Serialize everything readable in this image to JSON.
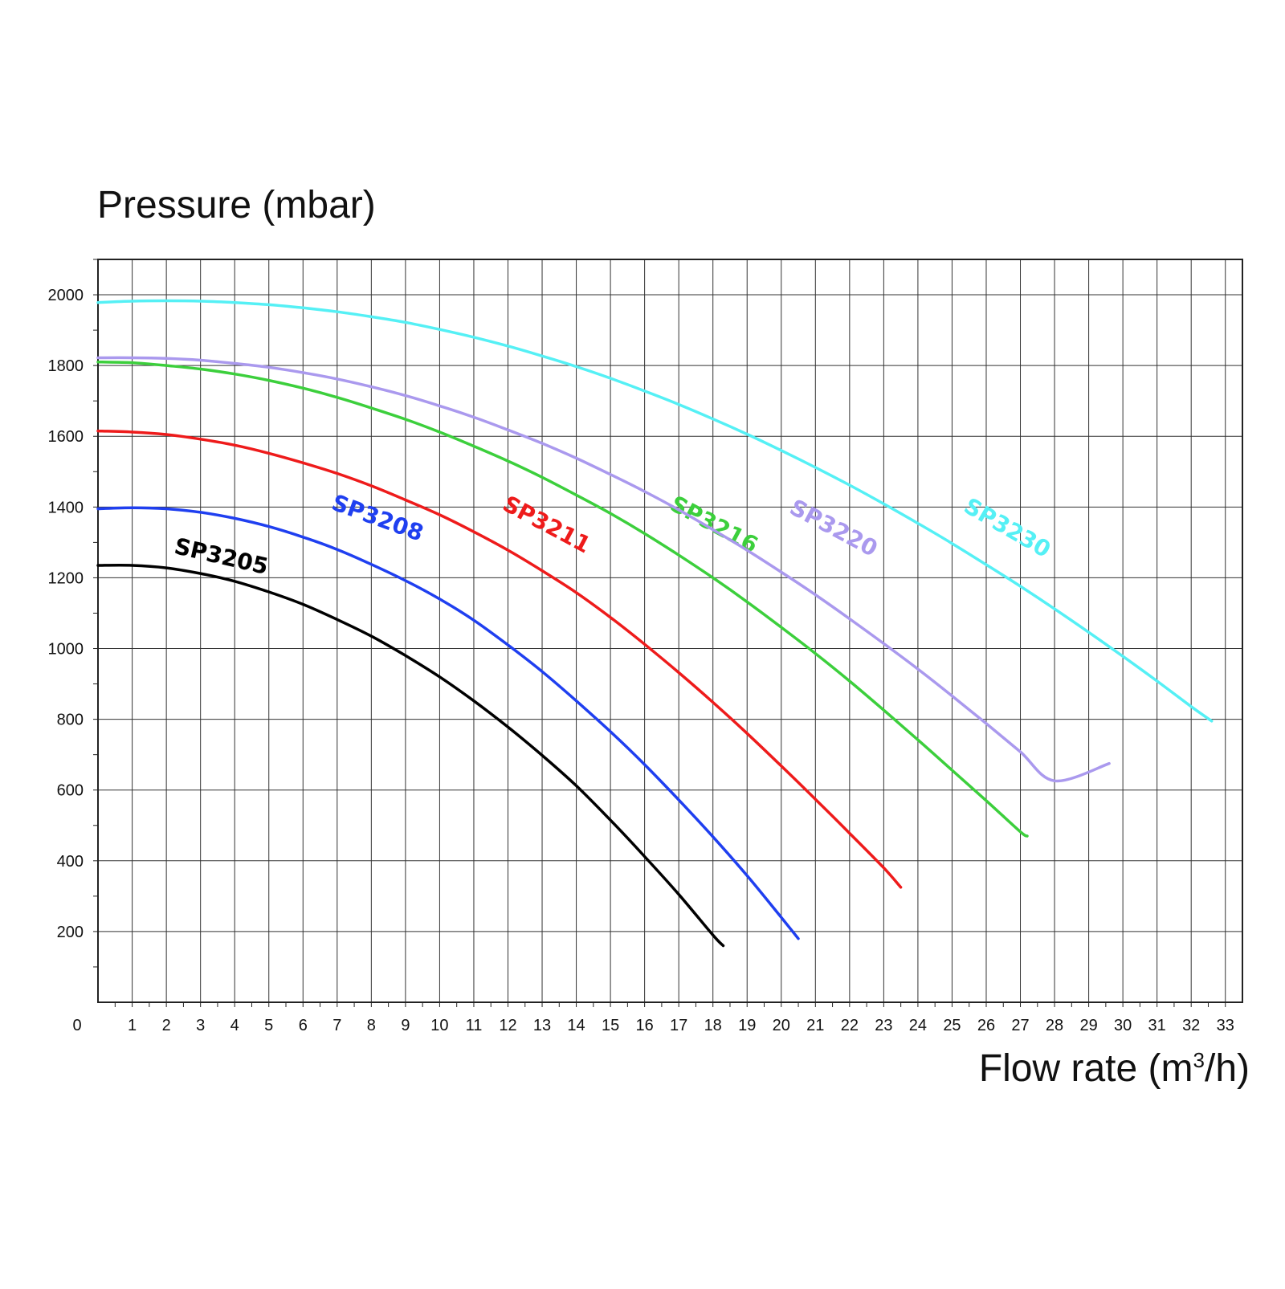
{
  "chart_data": {
    "type": "line",
    "ylabel": "Pressure (mbar)",
    "xlabel_main": "Flow rate (m",
    "xlabel_sup": "3",
    "xlabel_tail": "/h)",
    "xlim": [
      0,
      33
    ],
    "ylim": [
      0,
      2100
    ],
    "xticks": [
      0,
      1,
      2,
      3,
      4,
      5,
      6,
      7,
      8,
      9,
      10,
      11,
      12,
      13,
      14,
      15,
      16,
      17,
      18,
      19,
      20,
      21,
      22,
      23,
      24,
      25,
      26,
      27,
      28,
      29,
      30,
      31,
      32,
      33
    ],
    "yticks": [
      200,
      400,
      600,
      800,
      1000,
      1200,
      1400,
      1600,
      1800,
      2000
    ],
    "grid": true,
    "series": [
      {
        "name": "SP3205",
        "color": "#000000",
        "label_at": [
          2.2,
          1270
        ],
        "label_angle": 13,
        "points": [
          [
            0,
            1235
          ],
          [
            1,
            1235
          ],
          [
            2,
            1228
          ],
          [
            3,
            1212
          ],
          [
            4,
            1190
          ],
          [
            5,
            1160
          ],
          [
            6,
            1125
          ],
          [
            7,
            1082
          ],
          [
            8,
            1035
          ],
          [
            9,
            980
          ],
          [
            10,
            920
          ],
          [
            11,
            852
          ],
          [
            12,
            778
          ],
          [
            13,
            698
          ],
          [
            14,
            612
          ],
          [
            15,
            515
          ],
          [
            16,
            412
          ],
          [
            17,
            305
          ],
          [
            18,
            190
          ],
          [
            18.3,
            160
          ]
        ]
      },
      {
        "name": "SP3208",
        "color": "#1f3ff0",
        "label_at": [
          6.8,
          1395
        ],
        "label_angle": 20,
        "points": [
          [
            0,
            1395
          ],
          [
            1,
            1398
          ],
          [
            2,
            1395
          ],
          [
            3,
            1385
          ],
          [
            4,
            1368
          ],
          [
            5,
            1345
          ],
          [
            6,
            1315
          ],
          [
            7,
            1280
          ],
          [
            8,
            1238
          ],
          [
            9,
            1192
          ],
          [
            10,
            1140
          ],
          [
            11,
            1080
          ],
          [
            12,
            1010
          ],
          [
            13,
            935
          ],
          [
            14,
            852
          ],
          [
            15,
            765
          ],
          [
            16,
            672
          ],
          [
            17,
            572
          ],
          [
            18,
            468
          ],
          [
            19,
            358
          ],
          [
            20,
            240
          ],
          [
            20.5,
            180
          ]
        ]
      },
      {
        "name": "SP3211",
        "color": "#ee1b1b",
        "label_at": [
          11.8,
          1395
        ],
        "label_angle": 28,
        "points": [
          [
            0,
            1615
          ],
          [
            1,
            1612
          ],
          [
            2,
            1605
          ],
          [
            3,
            1592
          ],
          [
            4,
            1575
          ],
          [
            5,
            1552
          ],
          [
            6,
            1525
          ],
          [
            7,
            1495
          ],
          [
            8,
            1460
          ],
          [
            9,
            1420
          ],
          [
            10,
            1378
          ],
          [
            11,
            1330
          ],
          [
            12,
            1278
          ],
          [
            13,
            1220
          ],
          [
            14,
            1158
          ],
          [
            15,
            1088
          ],
          [
            16,
            1012
          ],
          [
            17,
            932
          ],
          [
            18,
            848
          ],
          [
            19,
            760
          ],
          [
            20,
            668
          ],
          [
            21,
            574
          ],
          [
            22,
            478
          ],
          [
            23,
            380
          ],
          [
            23.5,
            325
          ]
        ]
      },
      {
        "name": "SP3216",
        "color": "#3ccf3c",
        "label_at": [
          16.7,
          1395
        ],
        "label_angle": 28,
        "points": [
          [
            0,
            1810
          ],
          [
            1,
            1808
          ],
          [
            2,
            1800
          ],
          [
            3,
            1790
          ],
          [
            4,
            1776
          ],
          [
            5,
            1758
          ],
          [
            6,
            1736
          ],
          [
            7,
            1710
          ],
          [
            8,
            1680
          ],
          [
            9,
            1648
          ],
          [
            10,
            1612
          ],
          [
            11,
            1572
          ],
          [
            12,
            1530
          ],
          [
            13,
            1484
          ],
          [
            14,
            1434
          ],
          [
            15,
            1382
          ],
          [
            16,
            1325
          ],
          [
            17,
            1264
          ],
          [
            18,
            1200
          ],
          [
            19,
            1132
          ],
          [
            20,
            1060
          ],
          [
            21,
            986
          ],
          [
            22,
            908
          ],
          [
            23,
            826
          ],
          [
            24,
            742
          ],
          [
            25,
            656
          ],
          [
            26,
            570
          ],
          [
            27,
            482
          ],
          [
            27.2,
            470
          ]
        ]
      },
      {
        "name": "SP3220",
        "color": "#aa99ee",
        "label_at": [
          20.2,
          1385
        ],
        "label_angle": 28,
        "points": [
          [
            0,
            1822
          ],
          [
            1,
            1822
          ],
          [
            2,
            1820
          ],
          [
            3,
            1815
          ],
          [
            4,
            1806
          ],
          [
            5,
            1795
          ],
          [
            6,
            1780
          ],
          [
            7,
            1762
          ],
          [
            8,
            1740
          ],
          [
            9,
            1715
          ],
          [
            10,
            1686
          ],
          [
            11,
            1654
          ],
          [
            12,
            1618
          ],
          [
            13,
            1580
          ],
          [
            14,
            1538
          ],
          [
            15,
            1492
          ],
          [
            16,
            1444
          ],
          [
            17,
            1392
          ],
          [
            18,
            1336
          ],
          [
            19,
            1278
          ],
          [
            20,
            1216
          ],
          [
            21,
            1152
          ],
          [
            22,
            1084
          ],
          [
            23,
            1014
          ],
          [
            24,
            942
          ],
          [
            25,
            866
          ],
          [
            26,
            788
          ],
          [
            27,
            708
          ],
          [
            28,
            626
          ],
          [
            29.6,
            675
          ]
        ]
      },
      {
        "name": "SP3230",
        "color": "#55f0f5",
        "label_at": [
          25.3,
          1390
        ],
        "label_angle": 30,
        "points": [
          [
            0,
            1978
          ],
          [
            1,
            1982
          ],
          [
            2,
            1983
          ],
          [
            3,
            1982
          ],
          [
            4,
            1978
          ],
          [
            5,
            1972
          ],
          [
            6,
            1963
          ],
          [
            7,
            1952
          ],
          [
            8,
            1938
          ],
          [
            9,
            1922
          ],
          [
            10,
            1902
          ],
          [
            11,
            1880
          ],
          [
            12,
            1855
          ],
          [
            13,
            1827
          ],
          [
            14,
            1797
          ],
          [
            15,
            1764
          ],
          [
            16,
            1728
          ],
          [
            17,
            1690
          ],
          [
            18,
            1649
          ],
          [
            19,
            1606
          ],
          [
            20,
            1560
          ],
          [
            21,
            1512
          ],
          [
            22,
            1462
          ],
          [
            23,
            1409
          ],
          [
            24,
            1354
          ],
          [
            25,
            1297
          ],
          [
            26,
            1237
          ],
          [
            27,
            1176
          ],
          [
            28,
            1112
          ],
          [
            29,
            1046
          ],
          [
            30,
            978
          ],
          [
            31,
            908
          ],
          [
            32,
            836
          ],
          [
            32.6,
            795
          ]
        ]
      }
    ]
  }
}
